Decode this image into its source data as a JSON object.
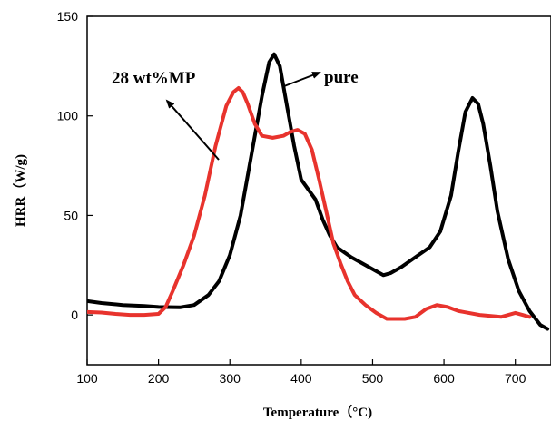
{
  "chart_data": {
    "type": "line",
    "title": "",
    "xlabel": "Temperature（°C)",
    "ylabel": "HRR（W/g)",
    "xlim": [
      100,
      750
    ],
    "ylim": [
      -25,
      150
    ],
    "xticks": [
      100,
      200,
      300,
      400,
      500,
      600,
      700
    ],
    "yticks": [
      0,
      50,
      100,
      150
    ],
    "grid": false,
    "legend": "none",
    "series": [
      {
        "color": "#000000",
        "points": [
          [
            100,
            7
          ],
          [
            120,
            6
          ],
          [
            150,
            5
          ],
          [
            180,
            4.5
          ],
          [
            200,
            4
          ],
          [
            230,
            3.8
          ],
          [
            250,
            5
          ],
          [
            270,
            10
          ],
          [
            285,
            17
          ],
          [
            300,
            30
          ],
          [
            315,
            50
          ],
          [
            330,
            80
          ],
          [
            345,
            110
          ],
          [
            355,
            127
          ],
          [
            362,
            131
          ],
          [
            370,
            125
          ],
          [
            380,
            105
          ],
          [
            390,
            85
          ],
          [
            400,
            68
          ],
          [
            410,
            63
          ],
          [
            420,
            58
          ],
          [
            430,
            48
          ],
          [
            440,
            40
          ],
          [
            450,
            34
          ],
          [
            470,
            29
          ],
          [
            490,
            25
          ],
          [
            505,
            22
          ],
          [
            515,
            20
          ],
          [
            525,
            21
          ],
          [
            540,
            24
          ],
          [
            560,
            29
          ],
          [
            580,
            34
          ],
          [
            595,
            42
          ],
          [
            610,
            60
          ],
          [
            620,
            82
          ],
          [
            630,
            102
          ],
          [
            640,
            109
          ],
          [
            648,
            106
          ],
          [
            655,
            96
          ],
          [
            665,
            75
          ],
          [
            675,
            52
          ],
          [
            690,
            28
          ],
          [
            705,
            12
          ],
          [
            720,
            2
          ],
          [
            735,
            -5
          ],
          [
            745,
            -7
          ]
        ]
      },
      {
        "color": "#e8332d",
        "points": [
          [
            100,
            1.5
          ],
          [
            120,
            1.2
          ],
          [
            140,
            0.5
          ],
          [
            160,
            0
          ],
          [
            180,
            0
          ],
          [
            200,
            0.5
          ],
          [
            210,
            4
          ],
          [
            220,
            12
          ],
          [
            235,
            25
          ],
          [
            250,
            40
          ],
          [
            265,
            60
          ],
          [
            280,
            85
          ],
          [
            295,
            105
          ],
          [
            305,
            112
          ],
          [
            312,
            114
          ],
          [
            318,
            112
          ],
          [
            325,
            106
          ],
          [
            335,
            96
          ],
          [
            345,
            90
          ],
          [
            360,
            89
          ],
          [
            375,
            90
          ],
          [
            385,
            92
          ],
          [
            395,
            93
          ],
          [
            405,
            91
          ],
          [
            415,
            83
          ],
          [
            425,
            68
          ],
          [
            435,
            52
          ],
          [
            445,
            36
          ],
          [
            455,
            26
          ],
          [
            465,
            17
          ],
          [
            475,
            10
          ],
          [
            490,
            5
          ],
          [
            505,
            1
          ],
          [
            520,
            -2
          ],
          [
            545,
            -2
          ],
          [
            560,
            -1
          ],
          [
            575,
            3
          ],
          [
            590,
            5
          ],
          [
            605,
            4
          ],
          [
            620,
            2
          ],
          [
            650,
            0
          ],
          [
            680,
            -1
          ],
          [
            700,
            1
          ],
          [
            710,
            0
          ],
          [
            720,
            -1
          ]
        ]
      }
    ],
    "annotations": [
      {
        "text": "28 wt%MP",
        "x": 185,
        "y": 128
      },
      {
        "text": "pure",
        "x": 425,
        "y": 125
      }
    ]
  }
}
